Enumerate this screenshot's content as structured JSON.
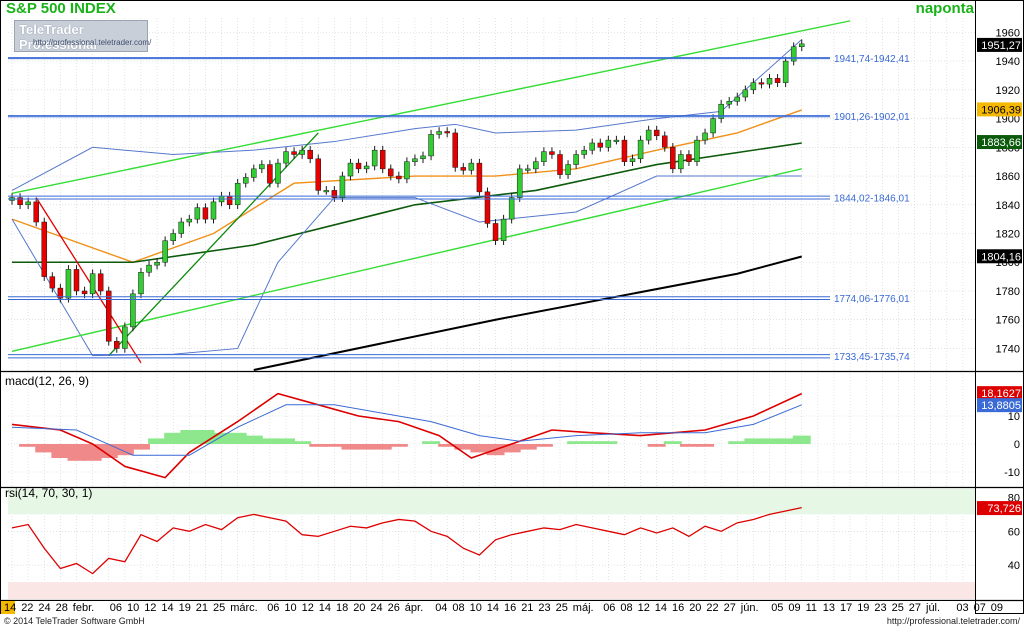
{
  "header": {
    "title": "S&P 500 INDEX",
    "period": "naponta",
    "logo_line1": "TeleTrader Professional",
    "logo_line2": "http://professional.teletrader.com/"
  },
  "footer": {
    "copyright": "© 2014 TeleTrader Software GmbH",
    "url": "http://professional.teletrader.com/"
  },
  "colors": {
    "up": "#33cc33",
    "down": "#e60000",
    "channel": "#33dd33",
    "trend": "#0a8a0a",
    "ma_short": "#f0901a",
    "ma_mid": "#0c5a0c",
    "ma_long": "#000000",
    "bollinger": "#5577cc",
    "level": "#3a6ad6",
    "macd": "#dd0000",
    "signal": "#3a6ad6",
    "hist_pos": "#8de88d",
    "hist_neg": "#f08a8a",
    "rsi": "#dd0000",
    "overbought_zone": "#e6f7e6",
    "oversold_zone": "#fbe6e6",
    "grid": "#d0d0d0"
  },
  "chart_data": [
    {
      "type": "candlestick",
      "title": "S&P 500 INDEX",
      "ylim": [
        1725,
        1970
      ],
      "yticks": [
        1740,
        1760,
        1780,
        1800,
        1820,
        1840,
        1860,
        1880,
        1900,
        1920,
        1940,
        1960
      ],
      "x_labels": [
        "14",
        "22",
        "24",
        "28",
        "febr.",
        "06",
        "10",
        "12",
        "14",
        "19",
        "21",
        "25",
        "márc.",
        "06",
        "10",
        "12",
        "14",
        "18",
        "20",
        "24",
        "26",
        "ápr.",
        "04",
        "08",
        "10",
        "14",
        "16",
        "21",
        "23",
        "25",
        "máj.",
        "06",
        "08",
        "12",
        "14",
        "16",
        "20",
        "22",
        "27",
        "jún.",
        "05",
        "09",
        "11",
        "13",
        "17",
        "19",
        "23",
        "25",
        "27",
        "júl.",
        "03",
        "07",
        "09"
      ],
      "value_tags": [
        {
          "label": "1951,27",
          "value": 1951.27,
          "style": "price"
        },
        {
          "label": "1906,39",
          "value": 1906.39,
          "style": "ma_short"
        },
        {
          "label": "1883,66",
          "value": 1883.66,
          "style": "ma_mid"
        },
        {
          "label": "1804,16",
          "value": 1804.16,
          "style": "ma_long"
        }
      ],
      "levels": [
        {
          "label": "1941,74-1942,41",
          "low": 1941.74,
          "high": 1942.41
        },
        {
          "label": "1901,26-1902,01",
          "low": 1901.26,
          "high": 1902.01
        },
        {
          "label": "1844,02-1846,01",
          "low": 1844.02,
          "high": 1846.01
        },
        {
          "label": "1774,06-1776,01",
          "low": 1774.06,
          "high": 1776.01
        },
        {
          "label": "1733,45-1735,74",
          "low": 1733.45,
          "high": 1735.74
        }
      ],
      "closes": [
        1845,
        1840,
        1842,
        1828,
        1790,
        1782,
        1775,
        1795,
        1780,
        1778,
        1792,
        1780,
        1745,
        1740,
        1755,
        1778,
        1793,
        1798,
        1800,
        1815,
        1820,
        1828,
        1830,
        1838,
        1830,
        1842,
        1846,
        1840,
        1855,
        1859,
        1865,
        1868,
        1855,
        1869,
        1877,
        1875,
        1878,
        1872,
        1850,
        1850,
        1845,
        1860,
        1869,
        1865,
        1867,
        1878,
        1865,
        1860,
        1858,
        1870,
        1872,
        1874,
        1889,
        1891,
        1890,
        1866,
        1864,
        1869,
        1849,
        1827,
        1815,
        1830,
        1845,
        1865,
        1865,
        1870,
        1877,
        1875,
        1861,
        1868,
        1875,
        1878,
        1883,
        1880,
        1885,
        1885,
        1870,
        1872,
        1885,
        1892,
        1888,
        1880,
        1865,
        1875,
        1870,
        1885,
        1890,
        1900,
        1910,
        1912,
        1915,
        1920,
        1925,
        1924,
        1928,
        1925,
        1940,
        1950,
        1952
      ],
      "series": [
        {
          "name": "MA short",
          "x": [
            0,
            15,
            25,
            35,
            50,
            60,
            70,
            80,
            90,
            98
          ],
          "values": [
            1830,
            1800,
            1820,
            1855,
            1860,
            1860,
            1865,
            1878,
            1890,
            1906
          ]
        },
        {
          "name": "MA mid",
          "x": [
            0,
            15,
            30,
            50,
            65,
            80,
            98
          ],
          "values": [
            1800,
            1800,
            1812,
            1840,
            1850,
            1868,
            1883
          ]
        },
        {
          "name": "MA long",
          "x": [
            30,
            60,
            90,
            98
          ],
          "values": [
            1725,
            1760,
            1792,
            1804
          ]
        },
        {
          "name": "Bollinger upper",
          "x": [
            0,
            10,
            20,
            30,
            40,
            50,
            55,
            60,
            70,
            80,
            88,
            98
          ],
          "values": [
            1850,
            1880,
            1875,
            1878,
            1884,
            1893,
            1896,
            1890,
            1892,
            1900,
            1905,
            1955
          ]
        },
        {
          "name": "Bollinger lower",
          "x": [
            0,
            10,
            20,
            28,
            33,
            40,
            50,
            58,
            70,
            80,
            90,
            98
          ],
          "values": [
            1830,
            1735,
            1736,
            1740,
            1800,
            1845,
            1845,
            1828,
            1835,
            1860,
            1860,
            1860
          ]
        },
        {
          "name": "Channel upper",
          "x": [
            0,
            104
          ],
          "values": [
            1848,
            1968
          ]
        },
        {
          "name": "Channel lower",
          "x": [
            0,
            98
          ],
          "values": [
            1738,
            1865
          ]
        }
      ]
    },
    {
      "type": "line",
      "title": "macd(12, 26, 9)",
      "ylim": [
        -15,
        25
      ],
      "yticks": [
        -10,
        0,
        10
      ],
      "value_tags": [
        {
          "label": "18,1627",
          "value": 18.1627,
          "style": "macd"
        },
        {
          "label": "13,8805",
          "value": 13.8805,
          "style": "signal"
        }
      ],
      "series": [
        {
          "name": "macd",
          "x": [
            0,
            6,
            10,
            14,
            19,
            22,
            28,
            33,
            38,
            43,
            48,
            53,
            57,
            62,
            67,
            72,
            78,
            82,
            86,
            92,
            98
          ],
          "values": [
            7,
            5,
            0,
            -8,
            -12,
            -3,
            8,
            18,
            14,
            10,
            8,
            3,
            -5,
            0,
            5,
            4,
            3,
            4,
            5,
            10,
            18
          ]
        },
        {
          "name": "signal",
          "x": [
            0,
            8,
            15,
            22,
            28,
            34,
            40,
            46,
            52,
            58,
            63,
            70,
            78,
            86,
            92,
            98
          ],
          "values": [
            6,
            5,
            -4,
            -4,
            6,
            14,
            14,
            11,
            8,
            3,
            1,
            3,
            4,
            4,
            7,
            14
          ]
        },
        {
          "name": "histogram",
          "x": [
            2,
            4,
            6,
            8,
            10,
            12,
            14,
            16,
            18,
            20,
            22,
            24,
            26,
            28,
            30,
            32,
            34,
            36,
            38,
            40,
            42,
            44,
            46,
            48,
            50,
            52,
            54,
            56,
            58,
            60,
            62,
            64,
            66,
            68,
            70,
            72,
            74,
            76,
            78,
            80,
            82,
            84,
            86,
            88,
            90,
            92,
            94,
            96,
            98
          ],
          "values": [
            -1,
            -3,
            -5,
            -6,
            -6,
            -5,
            -4,
            -2,
            2,
            4,
            5,
            5,
            4,
            4,
            3,
            2,
            2,
            1,
            -1,
            -1,
            -2,
            -2,
            -2,
            -1,
            0,
            1,
            -1,
            -2,
            -3,
            -4,
            -3,
            -2,
            -1,
            0,
            1,
            1,
            1,
            0,
            0,
            -1,
            1,
            -1,
            -1,
            0,
            1,
            2,
            2,
            2,
            3
          ]
        }
      ]
    },
    {
      "type": "line",
      "title": "rsi(14, 70, 30, 1)",
      "ylim": [
        20,
        85
      ],
      "yticks": [
        40,
        60,
        80
      ],
      "value_tags": [
        {
          "label": "73,726",
          "value": 73.726,
          "style": "rsi"
        }
      ],
      "series": [
        {
          "name": "rsi",
          "x": [
            0,
            2,
            4,
            6,
            8,
            10,
            12,
            14,
            16,
            18,
            20,
            22,
            24,
            26,
            28,
            30,
            32,
            34,
            36,
            38,
            40,
            42,
            44,
            46,
            48,
            50,
            52,
            54,
            56,
            58,
            60,
            62,
            64,
            66,
            68,
            70,
            72,
            74,
            76,
            78,
            80,
            82,
            84,
            86,
            88,
            90,
            92,
            94,
            96,
            98
          ],
          "values": [
            62,
            64,
            50,
            38,
            41,
            35,
            44,
            42,
            58,
            54,
            62,
            60,
            64,
            61,
            68,
            70,
            68,
            66,
            58,
            57,
            60,
            63,
            62,
            65,
            67,
            66,
            60,
            57,
            50,
            46,
            55,
            58,
            60,
            62,
            61,
            64,
            62,
            60,
            58,
            62,
            59,
            62,
            57,
            63,
            60,
            65,
            67,
            70,
            72,
            74
          ]
        }
      ]
    }
  ]
}
